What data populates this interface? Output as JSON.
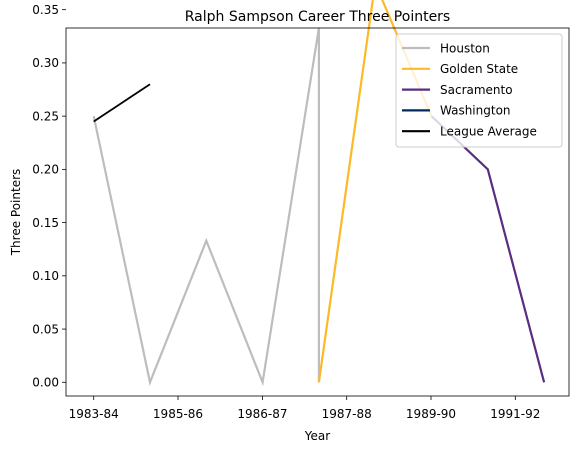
{
  "chart_data": {
    "type": "line",
    "title": "Ralph Sampson Career Three Pointers",
    "xlabel": "Year",
    "ylabel": "Three Pointers",
    "x_ticks": [
      "1983-84",
      "1985-86",
      "1986-87",
      "1987-88",
      "1989-90",
      "1991-92"
    ],
    "y_ticks": [
      "0.00",
      "0.05",
      "0.10",
      "0.15",
      "0.20",
      "0.25",
      "0.30",
      "0.35"
    ],
    "ylim": [
      -0.02,
      0.39
    ],
    "grid": false,
    "legend_position": "top-right",
    "series": [
      {
        "name": "Houston",
        "color": "#bdbdbd",
        "points": [
          {
            "x": 0,
            "y": 0.25
          },
          {
            "x": 1,
            "y": 0.0
          },
          {
            "x": 2,
            "y": 0.133
          },
          {
            "x": 3,
            "y": 0.0
          },
          {
            "x": 4,
            "y": 0.333
          },
          {
            "x": 4,
            "y": 0.0
          }
        ]
      },
      {
        "name": "Golden State",
        "color": "#fdb927",
        "points": [
          {
            "x": 4,
            "y": 0.0
          },
          {
            "x": 5,
            "y": 0.375
          },
          {
            "x": 6,
            "y": 0.25
          }
        ]
      },
      {
        "name": "Sacramento",
        "color": "#5a2d81",
        "points": [
          {
            "x": 6,
            "y": 0.25
          },
          {
            "x": 7,
            "y": 0.2
          },
          {
            "x": 8,
            "y": 0.0
          }
        ]
      },
      {
        "name": "Washington",
        "color": "#002b5c",
        "points": []
      },
      {
        "name": "League Average",
        "color": "#000000",
        "points": [
          {
            "x": 0,
            "y": 0.245
          },
          {
            "x": 1,
            "y": 0.28
          }
        ]
      }
    ]
  }
}
